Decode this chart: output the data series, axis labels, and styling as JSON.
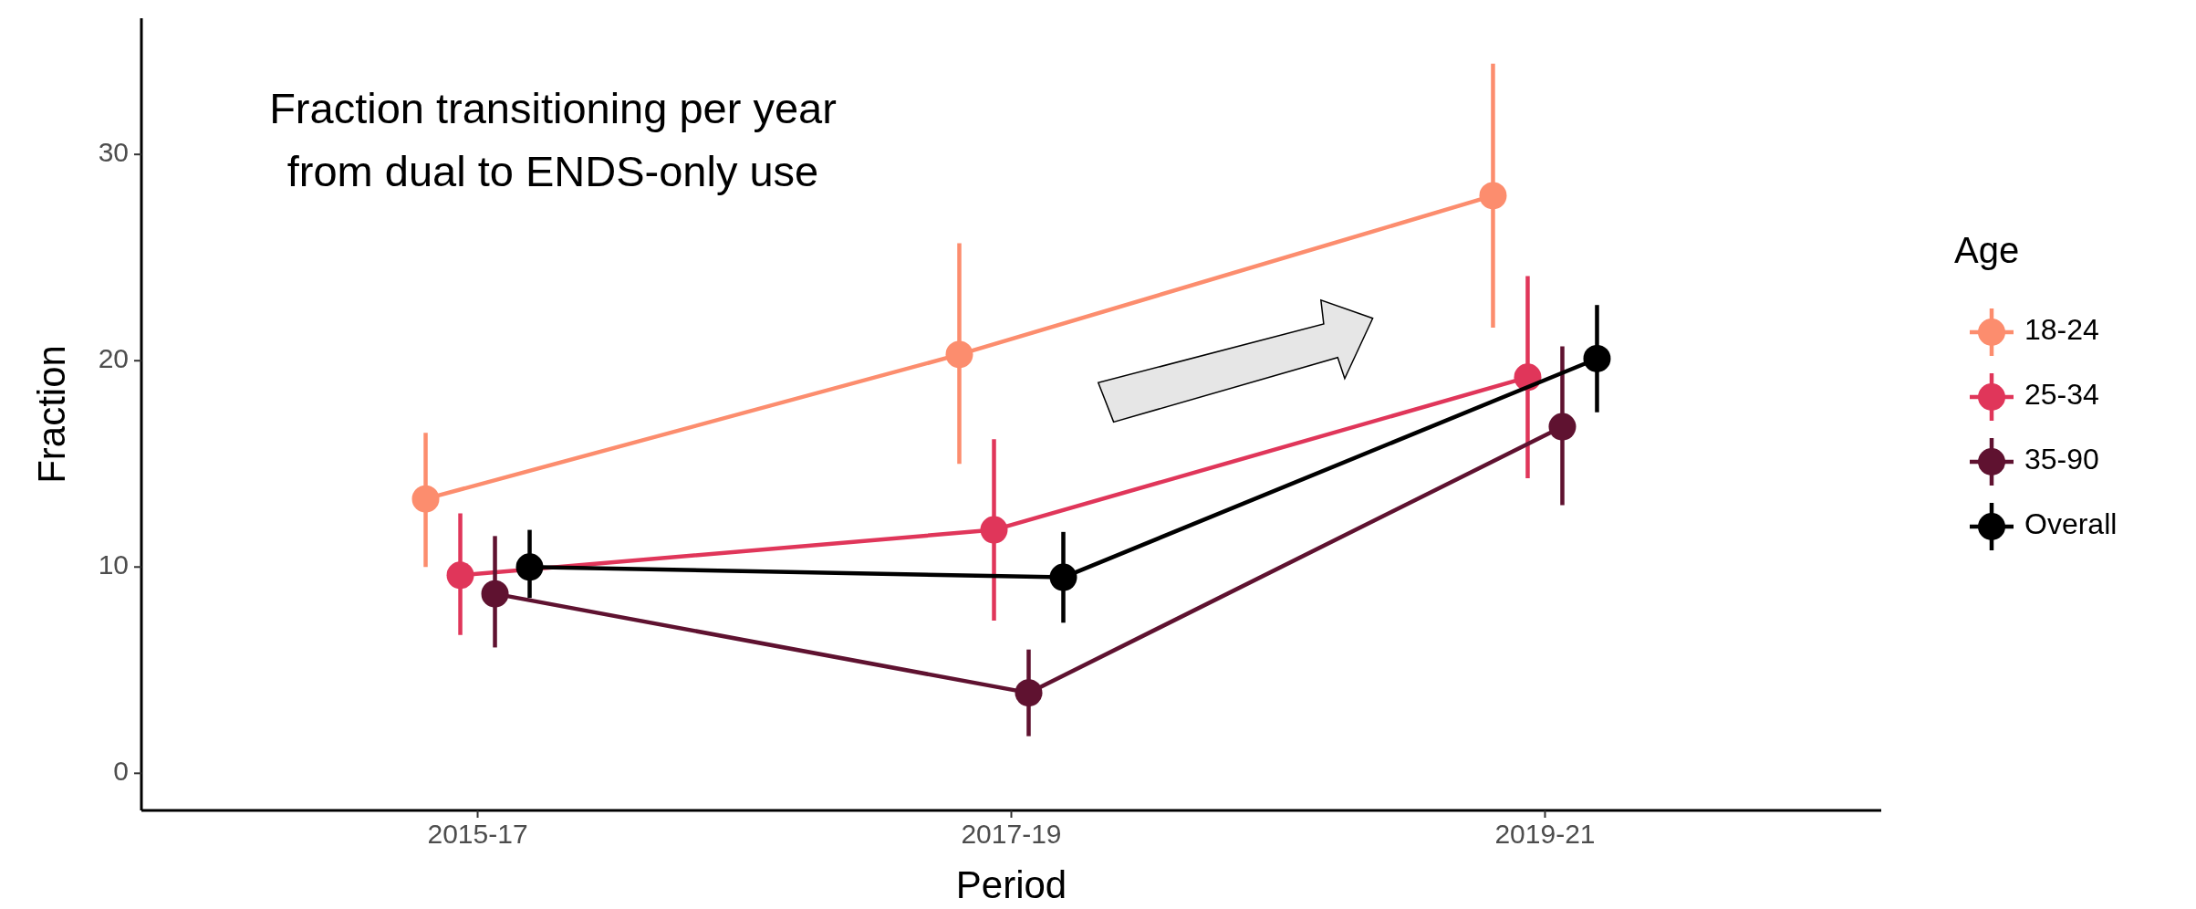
{
  "chart_data": {
    "type": "line",
    "xlabel": "Period",
    "ylabel": "Fraction",
    "legend_title": "Age",
    "legend": "right",
    "marker": "circle",
    "grid": false,
    "categories": [
      "2015-17",
      "2017-19",
      "2019-21"
    ],
    "ylim": [
      -1.8,
      36.6
    ],
    "yticks": [
      0,
      10,
      20,
      30
    ],
    "annotations": [
      "Fraction transitioning per year",
      "from dual to ENDS-only use"
    ],
    "series": [
      {
        "name": "18-24",
        "color": "#fc8d6e",
        "values": [
          13.3,
          20.3,
          28.0
        ],
        "errors": [
          [
            10.0,
            16.5
          ],
          [
            15.0,
            25.7
          ],
          [
            21.6,
            34.4
          ]
        ]
      },
      {
        "name": "25-34",
        "color": "#e0365a",
        "values": [
          9.6,
          11.8,
          19.2
        ],
        "errors": [
          [
            6.7,
            12.6
          ],
          [
            7.4,
            16.2
          ],
          [
            14.3,
            24.1
          ]
        ]
      },
      {
        "name": "35-90",
        "color": "#5f1230",
        "values": [
          8.7,
          3.9,
          16.8
        ],
        "errors": [
          [
            6.1,
            11.5
          ],
          [
            1.8,
            6.0
          ],
          [
            13.0,
            20.7
          ]
        ]
      },
      {
        "name": "Overall",
        "color": "#000000",
        "values": [
          10.0,
          9.5,
          20.1
        ],
        "errors": [
          [
            8.5,
            11.8
          ],
          [
            7.3,
            11.7
          ],
          [
            17.5,
            22.7
          ]
        ]
      }
    ]
  }
}
